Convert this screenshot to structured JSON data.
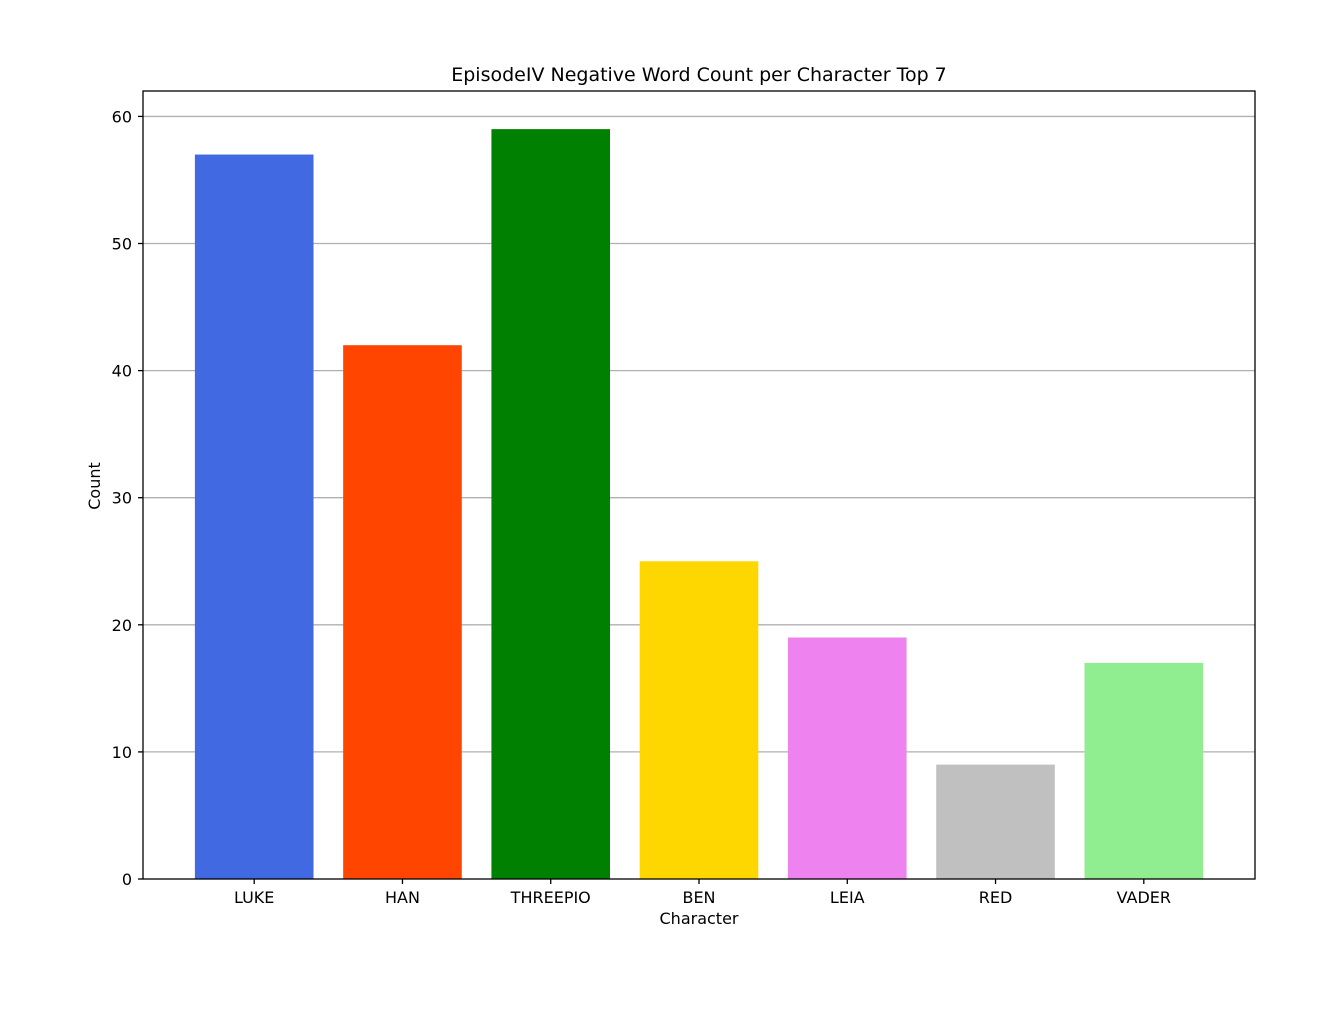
{
  "chart_data": {
    "type": "bar",
    "title": "EpisodeIV Negative Word Count per Character Top 7",
    "xlabel": "Character",
    "ylabel": "Count",
    "categories": [
      "LUKE",
      "HAN",
      "THREEPIO",
      "BEN",
      "LEIA",
      "RED",
      "VADER"
    ],
    "values": [
      57,
      42,
      59,
      25,
      19,
      9,
      17
    ],
    "colors": [
      "#4169E1",
      "#FF4500",
      "#008000",
      "#FFD700",
      "#EE82EE",
      "#C0C0C0",
      "#90EE90"
    ],
    "ylim": [
      0,
      62
    ],
    "yticks": [
      0,
      10,
      20,
      30,
      40,
      50,
      60
    ],
    "grid": "y",
    "legend": "none"
  }
}
